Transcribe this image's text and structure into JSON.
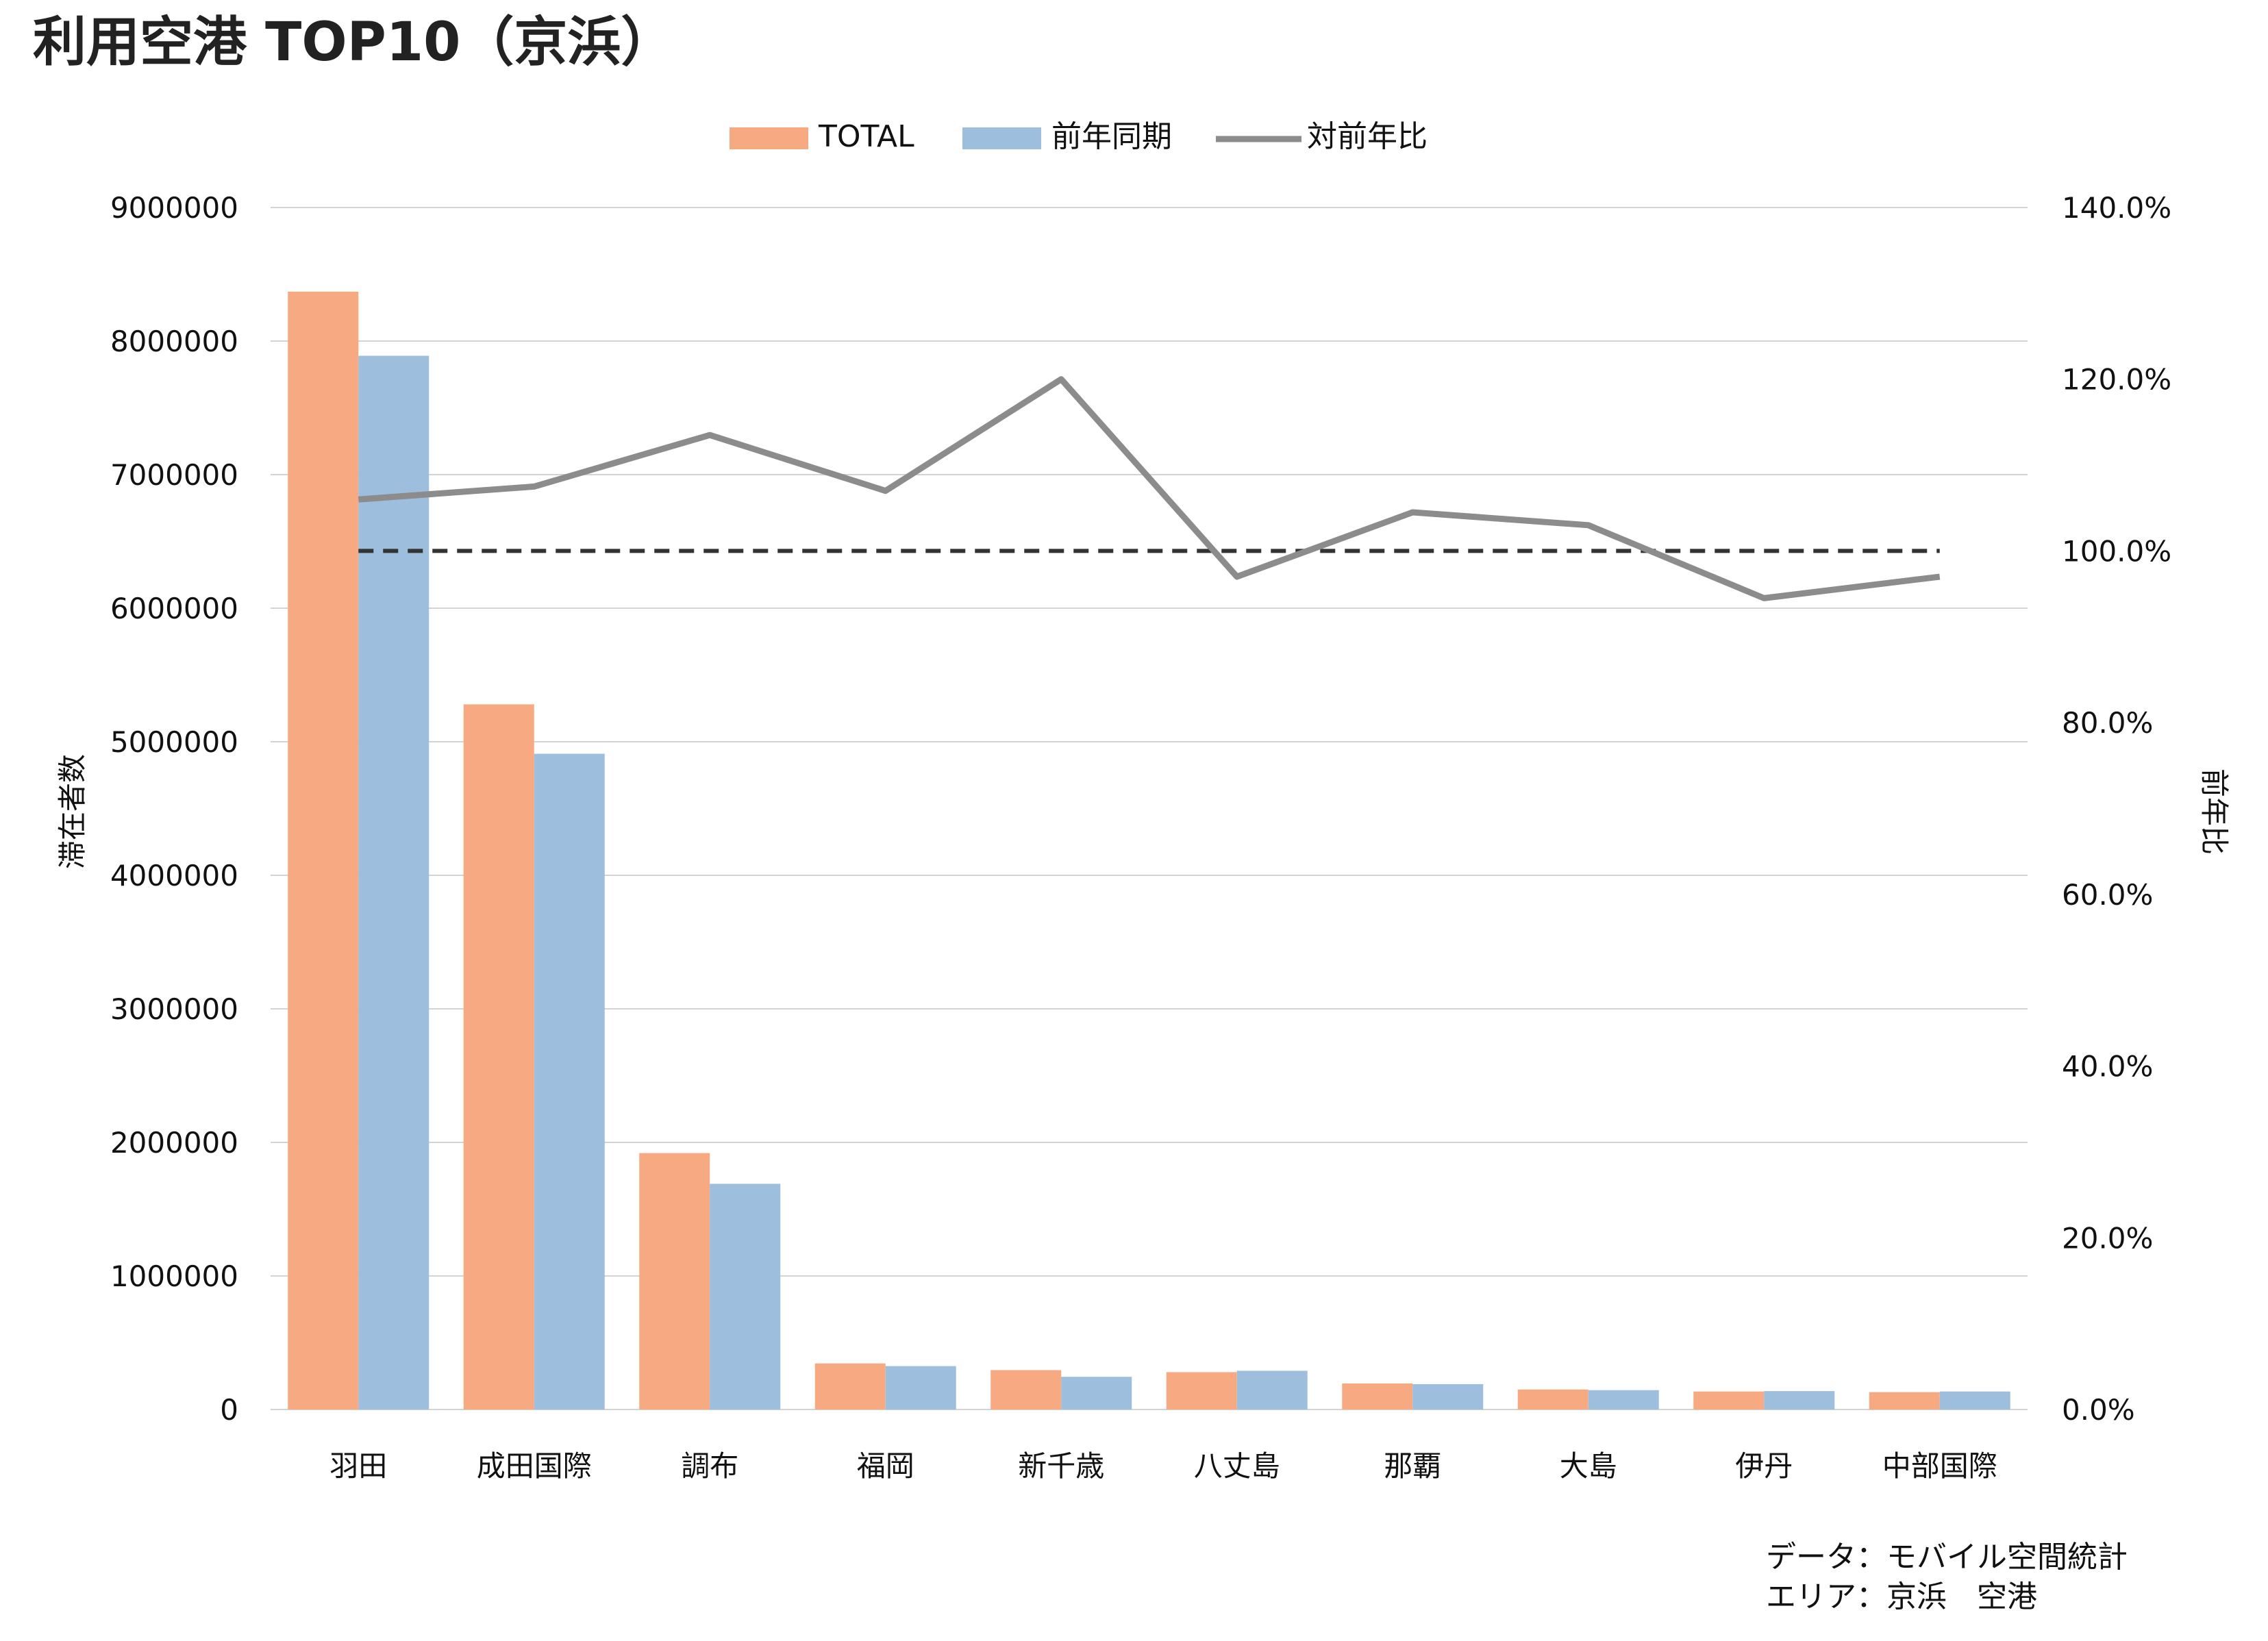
{
  "title": "利用空港 TOP10（京浜）",
  "legend": {
    "total": "TOTAL",
    "prev": "前年同期",
    "ratio": "対前年比"
  },
  "colors": {
    "total": "#F7AA82",
    "prev": "#9DBFDD",
    "ratio": "#8C8C8C",
    "baseline": "#333333"
  },
  "source": {
    "line1": "データ：モバイル空間統計",
    "line2": "エリア：京浜　空港"
  },
  "chart_data": {
    "type": "bar",
    "categories": [
      "羽田",
      "成田国際",
      "調布",
      "福岡",
      "新千歳",
      "八丈島",
      "那覇",
      "大島",
      "伊丹",
      "中部国際"
    ],
    "series": [
      {
        "name": "TOTAL",
        "values": [
          8370000,
          5280000,
          1920000,
          345000,
          295000,
          280000,
          195000,
          150000,
          135000,
          130000
        ]
      },
      {
        "name": "前年同期",
        "values": [
          7890000,
          4910000,
          1690000,
          325000,
          245000,
          290000,
          190000,
          145000,
          138000,
          135000
        ]
      },
      {
        "name": "対前年比",
        "axis": "right",
        "values": [
          106.0,
          107.5,
          113.5,
          107.0,
          120.0,
          97.0,
          104.5,
          103.0,
          94.5,
          97.0
        ]
      }
    ],
    "baseline_percent": 100.0,
    "ylabel": "滞在者数",
    "y2label": "前年比",
    "ylim": [
      0,
      9000000
    ],
    "y2lim": [
      0,
      140
    ],
    "yticks": [
      "0",
      "1000000",
      "2000000",
      "3000000",
      "4000000",
      "5000000",
      "6000000",
      "7000000",
      "8000000",
      "9000000"
    ],
    "y2ticks": [
      "0.0%",
      "20.0%",
      "40.0%",
      "60.0%",
      "80.0%",
      "100.0%",
      "120.0%",
      "140.0%"
    ],
    "grid": true,
    "legend_position": "top"
  }
}
